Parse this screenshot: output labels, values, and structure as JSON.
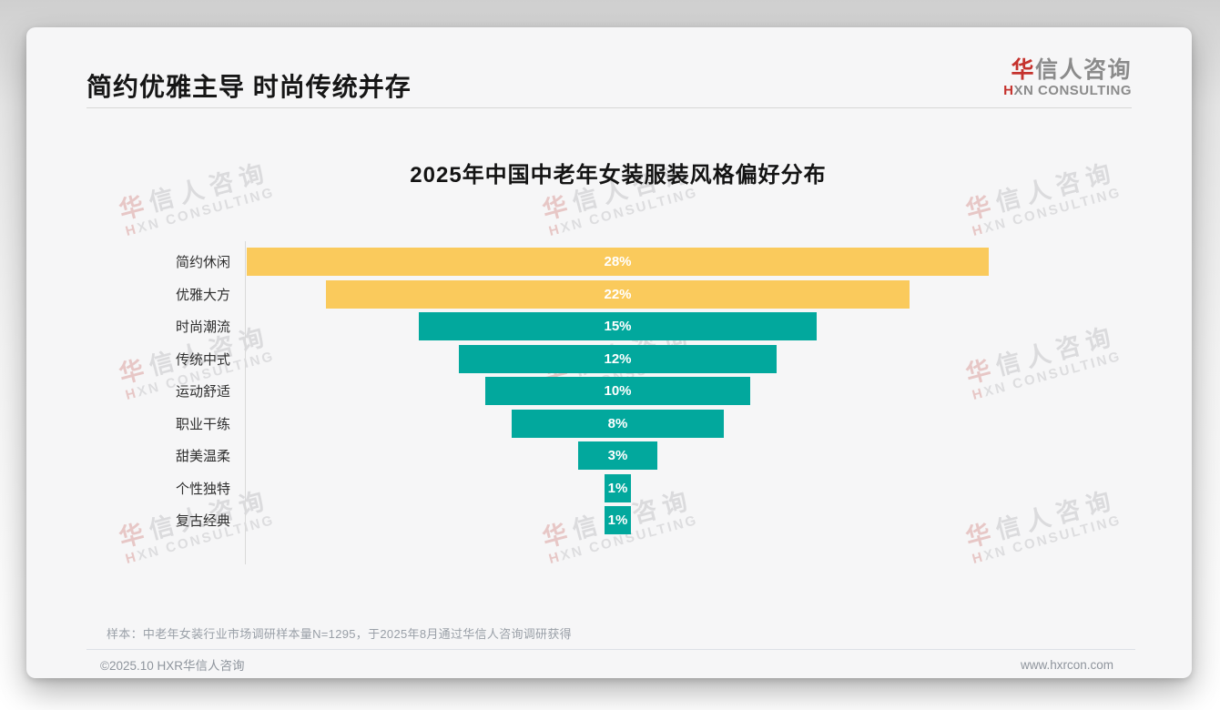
{
  "header": {
    "title": "简约优雅主导 时尚传统并存"
  },
  "logo": {
    "cn_first": "华",
    "cn_rest": "信人咨询",
    "en_first": "H",
    "en_rest": "XN CONSULTING"
  },
  "watermark": {
    "cn": "华信人咨询",
    "en": "HXN CONSULTING"
  },
  "chart_data": {
    "type": "bar",
    "variant": "horizontal-centered-funnel",
    "title": "2025年中国中老年女装服装风格偏好分布",
    "categories": [
      "简约休闲",
      "优雅大方",
      "时尚潮流",
      "传统中式",
      "运动舒适",
      "职业干练",
      "甜美温柔",
      "个性独特",
      "复古经典"
    ],
    "values": [
      28,
      22,
      15,
      12,
      10,
      8,
      3,
      1,
      1
    ],
    "value_labels": [
      "28%",
      "22%",
      "15%",
      "12%",
      "10%",
      "8%",
      "3%",
      "1%",
      "1%"
    ],
    "bar_colors": [
      "#FACA5C",
      "#FACA5C",
      "#02A89D",
      "#02A89D",
      "#02A89D",
      "#02A89D",
      "#02A89D",
      "#02A89D",
      "#02A89D"
    ],
    "scale_max": 28,
    "xlabel": "",
    "ylabel": "",
    "legend": false,
    "grid": false,
    "axis_line": true,
    "value_label_color": "#ffffff"
  },
  "colors": {
    "accent_red": "#c5322d",
    "bar_yellow": "#FACA5C",
    "bar_teal": "#02A89D"
  },
  "footnote": "样本：中老年女装行业市场调研样本量N=1295，于2025年8月通过华信人咨询调研获得",
  "footer": {
    "copyright": "©2025.10 HXR华信人咨询",
    "website": "www.hxrcon.com"
  }
}
